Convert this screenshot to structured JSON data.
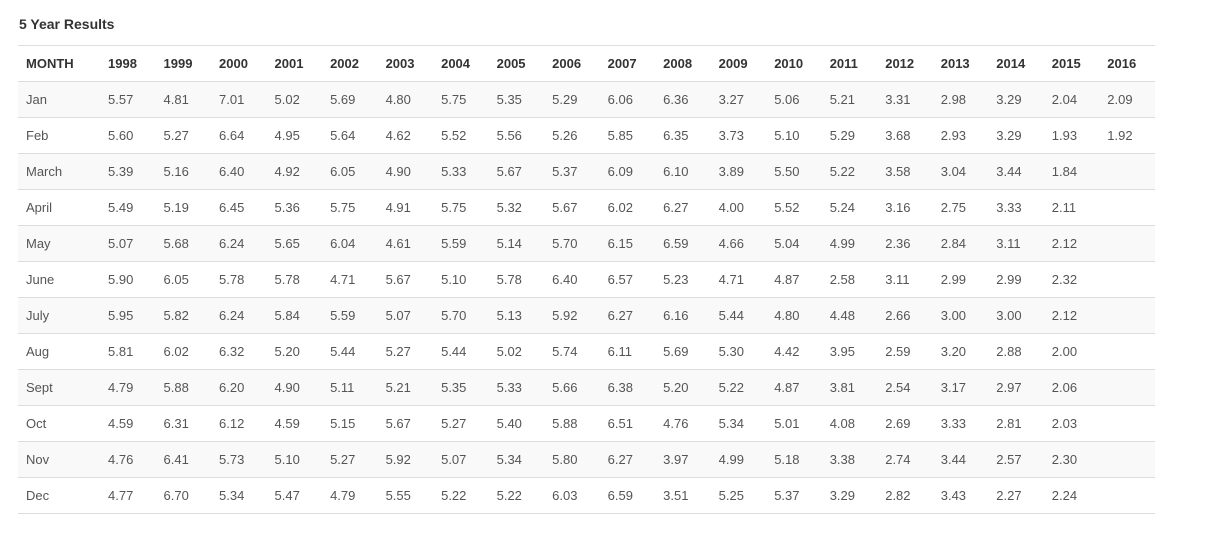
{
  "title": "5 Year Results",
  "colors": {
    "background": "#ffffff",
    "header_text": "#333333",
    "cell_text": "#555555",
    "stripe_row_bg": "#f9f9f9",
    "border": "#dddddd"
  },
  "chart_data": {
    "type": "table",
    "title": "5 Year Results",
    "columns": [
      "MONTH",
      "1998",
      "1999",
      "2000",
      "2001",
      "2002",
      "2003",
      "2004",
      "2005",
      "2006",
      "2007",
      "2008",
      "2009",
      "2010",
      "2011",
      "2012",
      "2013",
      "2014",
      "2015",
      "2016"
    ],
    "rows": [
      {
        "month": "Jan",
        "values": [
          "5.57",
          "4.81",
          "7.01",
          "5.02",
          "5.69",
          "4.80",
          "5.75",
          "5.35",
          "5.29",
          "6.06",
          "6.36",
          "3.27",
          "5.06",
          "5.21",
          "3.31",
          "2.98",
          "3.29",
          "2.04",
          "2.09"
        ]
      },
      {
        "month": "Feb",
        "values": [
          "5.60",
          "5.27",
          "6.64",
          "4.95",
          "5.64",
          "4.62",
          "5.52",
          "5.56",
          "5.26",
          "5.85",
          "6.35",
          "3.73",
          "5.10",
          "5.29",
          "3.68",
          "2.93",
          "3.29",
          "1.93",
          "1.92"
        ]
      },
      {
        "month": "March",
        "values": [
          "5.39",
          "5.16",
          "6.40",
          "4.92",
          "6.05",
          "4.90",
          "5.33",
          "5.67",
          "5.37",
          "6.09",
          "6.10",
          "3.89",
          "5.50",
          "5.22",
          "3.58",
          "3.04",
          "3.44",
          "1.84",
          ""
        ]
      },
      {
        "month": "April",
        "values": [
          "5.49",
          "5.19",
          "6.45",
          "5.36",
          "5.75",
          "4.91",
          "5.75",
          "5.32",
          "5.67",
          "6.02",
          "6.27",
          "4.00",
          "5.52",
          "5.24",
          "3.16",
          "2.75",
          "3.33",
          "2.11",
          ""
        ]
      },
      {
        "month": "May",
        "values": [
          "5.07",
          "5.68",
          "6.24",
          "5.65",
          "6.04",
          "4.61",
          "5.59",
          "5.14",
          "5.70",
          "6.15",
          "6.59",
          "4.66",
          "5.04",
          "4.99",
          "2.36",
          "2.84",
          "3.11",
          "2.12",
          ""
        ]
      },
      {
        "month": "June",
        "values": [
          "5.90",
          "6.05",
          "5.78",
          "5.78",
          "4.71",
          "5.67",
          "5.10",
          "5.78",
          "6.40",
          "6.57",
          "5.23",
          "4.71",
          "4.87",
          "2.58",
          "3.11",
          "2.99",
          "2.99",
          "2.32",
          ""
        ]
      },
      {
        "month": "July",
        "values": [
          "5.95",
          "5.82",
          "6.24",
          "5.84",
          "5.59",
          "5.07",
          "5.70",
          "5.13",
          "5.92",
          "6.27",
          "6.16",
          "5.44",
          "4.80",
          "4.48",
          "2.66",
          "3.00",
          "3.00",
          "2.12",
          ""
        ]
      },
      {
        "month": "Aug",
        "values": [
          "5.81",
          "6.02",
          "6.32",
          "5.20",
          "5.44",
          "5.27",
          "5.44",
          "5.02",
          "5.74",
          "6.11",
          "5.69",
          "5.30",
          "4.42",
          "3.95",
          "2.59",
          "3.20",
          "2.88",
          "2.00",
          ""
        ]
      },
      {
        "month": "Sept",
        "values": [
          "4.79",
          "5.88",
          "6.20",
          "4.90",
          "5.11",
          "5.21",
          "5.35",
          "5.33",
          "5.66",
          "6.38",
          "5.20",
          "5.22",
          "4.87",
          "3.81",
          "2.54",
          "3.17",
          "2.97",
          "2.06",
          ""
        ]
      },
      {
        "month": "Oct",
        "values": [
          "4.59",
          "6.31",
          "6.12",
          "4.59",
          "5.15",
          "5.67",
          "5.27",
          "5.40",
          "5.88",
          "6.51",
          "4.76",
          "5.34",
          "5.01",
          "4.08",
          "2.69",
          "3.33",
          "2.81",
          "2.03",
          ""
        ]
      },
      {
        "month": "Nov",
        "values": [
          "4.76",
          "6.41",
          "5.73",
          "5.10",
          "5.27",
          "5.92",
          "5.07",
          "5.34",
          "5.80",
          "6.27",
          "3.97",
          "4.99",
          "5.18",
          "3.38",
          "2.74",
          "3.44",
          "2.57",
          "2.30",
          ""
        ]
      },
      {
        "month": "Dec",
        "values": [
          "4.77",
          "6.70",
          "5.34",
          "5.47",
          "4.79",
          "5.55",
          "5.22",
          "5.22",
          "6.03",
          "6.59",
          "3.51",
          "5.25",
          "5.37",
          "3.29",
          "2.82",
          "3.43",
          "2.27",
          "2.24",
          ""
        ]
      }
    ]
  }
}
